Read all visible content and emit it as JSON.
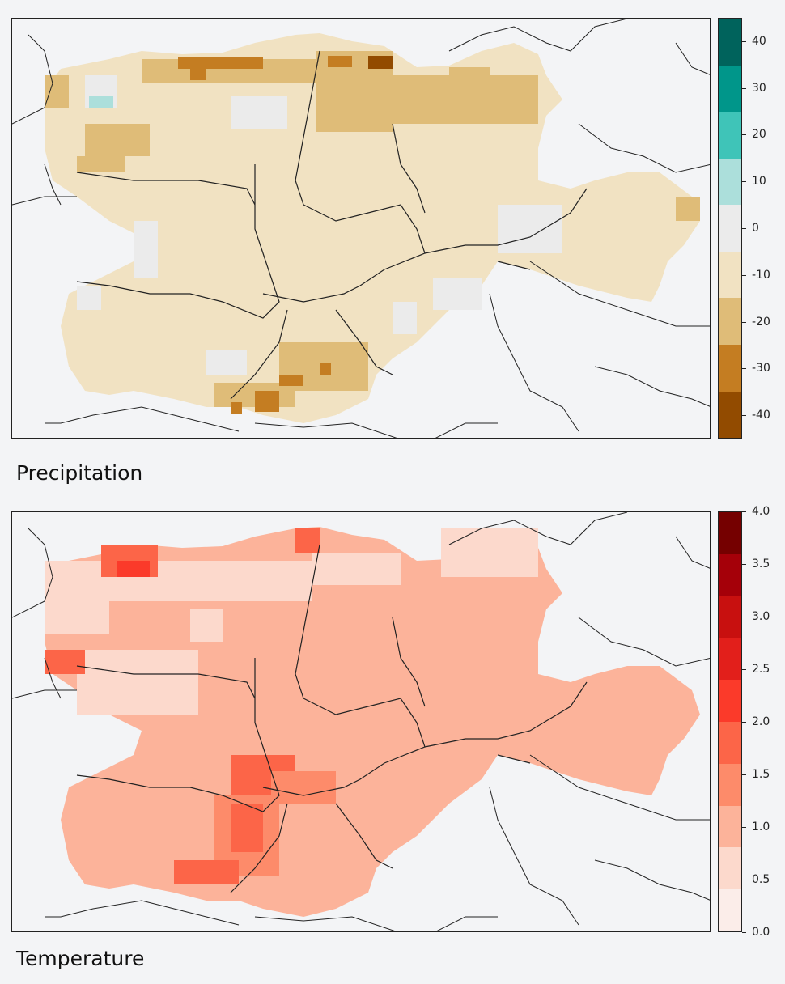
{
  "panels": [
    {
      "id": "precipitation",
      "title": "Precipitation",
      "legend": {
        "ticks": [
          "40",
          "30",
          "20",
          "10",
          "0",
          "-10",
          "-20",
          "-30",
          "-40"
        ],
        "range": [
          -45,
          45
        ],
        "colors": [
          "#00635c",
          "#00968a",
          "#3fc4b8",
          "#acdfdb",
          "#ebebeb",
          "#f1e2c2",
          "#dfbc78",
          "#c47d22",
          "#924b00"
        ]
      }
    },
    {
      "id": "temperature",
      "title": "Temperature",
      "legend": {
        "ticks": [
          "4.0",
          "3.5",
          "3.0",
          "2.5",
          "2.0",
          "1.5",
          "1.0",
          "0.5",
          "0.0"
        ],
        "range": [
          0,
          4
        ],
        "colors": [
          "#750000",
          "#a50009",
          "#c8100f",
          "#e21f1b",
          "#fb3a2a",
          "#fc6548",
          "#fd8b6a",
          "#fcb39a",
          "#fcd9cc",
          "#fbede9"
        ]
      }
    }
  ]
}
